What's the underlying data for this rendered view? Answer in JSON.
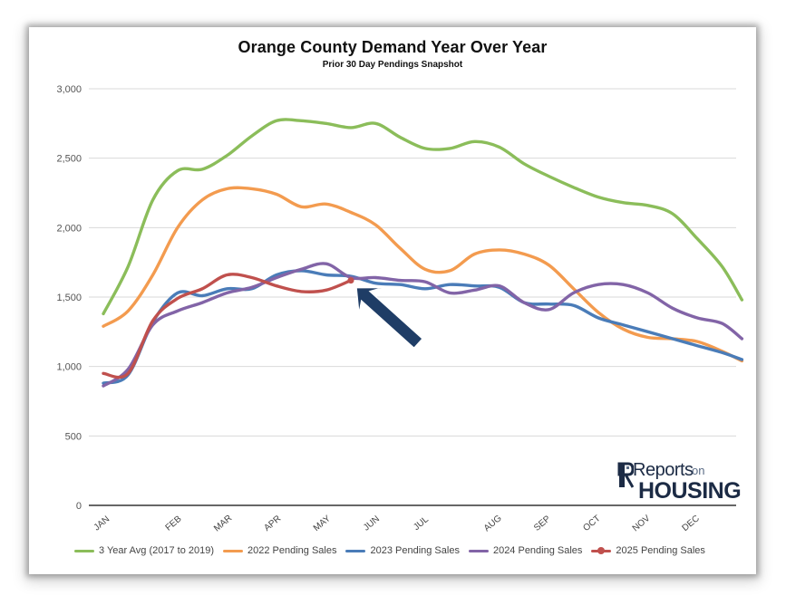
{
  "chart_data": {
    "type": "line",
    "title": "Orange County Demand Year Over Year",
    "subtitle": "Prior 30 Day Pendings Snapshot",
    "xlabel": "",
    "ylabel": "",
    "ylim": [
      0,
      3000
    ],
    "yticks": [
      0,
      500,
      1000,
      1500,
      2000,
      2500,
      3000
    ],
    "ytick_labels": [
      "0",
      "500",
      "1,000",
      "1,500",
      "2,000",
      "2,500",
      "3,000"
    ],
    "xlim": [
      0,
      12.6
    ],
    "month_labels": [
      {
        "label": "JAN",
        "x": 0
      },
      {
        "label": "FEB",
        "x": 1.45
      },
      {
        "label": "MAR",
        "x": 2.45
      },
      {
        "label": "APR",
        "x": 3.45
      },
      {
        "label": "MAY",
        "x": 4.45
      },
      {
        "label": "JUN",
        "x": 5.45
      },
      {
        "label": "JUL",
        "x": 6.45
      },
      {
        "label": "AUG",
        "x": 7.9
      },
      {
        "label": "SEP",
        "x": 8.9
      },
      {
        "label": "OCT",
        "x": 9.9
      },
      {
        "label": "NOV",
        "x": 10.9
      },
      {
        "label": "DEC",
        "x": 11.9
      }
    ],
    "grid": true,
    "legend_position": "bottom",
    "series": [
      {
        "name": "3 Year Avg (2017 to 2019)",
        "color": "#8bbd5a",
        "marker": "line",
        "points": [
          [
            0,
            1380
          ],
          [
            0.5,
            1720
          ],
          [
            1,
            2200
          ],
          [
            1.5,
            2410
          ],
          [
            2,
            2420
          ],
          [
            2.5,
            2520
          ],
          [
            3,
            2660
          ],
          [
            3.5,
            2770
          ],
          [
            4,
            2770
          ],
          [
            4.5,
            2750
          ],
          [
            5,
            2720
          ],
          [
            5.5,
            2750
          ],
          [
            6,
            2650
          ],
          [
            6.5,
            2570
          ],
          [
            7,
            2570
          ],
          [
            7.5,
            2620
          ],
          [
            8,
            2580
          ],
          [
            8.5,
            2460
          ],
          [
            9,
            2370
          ],
          [
            9.5,
            2290
          ],
          [
            10,
            2220
          ],
          [
            10.5,
            2180
          ],
          [
            11,
            2160
          ],
          [
            11.5,
            2100
          ],
          [
            12,
            1920
          ],
          [
            12.5,
            1720
          ],
          [
            12.9,
            1480
          ]
        ]
      },
      {
        "name": "2022 Pending Sales",
        "color": "#f39b4f",
        "marker": "line",
        "points": [
          [
            0,
            1290
          ],
          [
            0.5,
            1400
          ],
          [
            1,
            1660
          ],
          [
            1.5,
            2000
          ],
          [
            2,
            2200
          ],
          [
            2.5,
            2280
          ],
          [
            3,
            2280
          ],
          [
            3.5,
            2240
          ],
          [
            4,
            2150
          ],
          [
            4.5,
            2170
          ],
          [
            5,
            2110
          ],
          [
            5.5,
            2020
          ],
          [
            6,
            1850
          ],
          [
            6.5,
            1700
          ],
          [
            7,
            1690
          ],
          [
            7.5,
            1810
          ],
          [
            8,
            1840
          ],
          [
            8.5,
            1810
          ],
          [
            9,
            1730
          ],
          [
            9.5,
            1560
          ],
          [
            10,
            1390
          ],
          [
            10.5,
            1270
          ],
          [
            11,
            1210
          ],
          [
            11.5,
            1200
          ],
          [
            12,
            1180
          ],
          [
            12.5,
            1110
          ],
          [
            12.9,
            1040
          ]
        ]
      },
      {
        "name": "2023 Pending Sales",
        "color": "#4a7cb8",
        "marker": "line",
        "points": [
          [
            0,
            880
          ],
          [
            0.5,
            940
          ],
          [
            1,
            1320
          ],
          [
            1.5,
            1530
          ],
          [
            2,
            1510
          ],
          [
            2.5,
            1560
          ],
          [
            3,
            1560
          ],
          [
            3.5,
            1660
          ],
          [
            4,
            1690
          ],
          [
            4.5,
            1660
          ],
          [
            5,
            1650
          ],
          [
            5.5,
            1600
          ],
          [
            6,
            1590
          ],
          [
            6.5,
            1560
          ],
          [
            7,
            1590
          ],
          [
            7.5,
            1580
          ],
          [
            8,
            1570
          ],
          [
            8.5,
            1460
          ],
          [
            9,
            1450
          ],
          [
            9.5,
            1440
          ],
          [
            10,
            1350
          ],
          [
            10.5,
            1300
          ],
          [
            11,
            1250
          ],
          [
            11.5,
            1200
          ],
          [
            12,
            1150
          ],
          [
            12.5,
            1100
          ],
          [
            12.9,
            1050
          ]
        ]
      },
      {
        "name": "2024 Pending Sales",
        "color": "#8264a7",
        "marker": "line",
        "points": [
          [
            0,
            860
          ],
          [
            0.5,
            980
          ],
          [
            1,
            1300
          ],
          [
            1.5,
            1400
          ],
          [
            2,
            1460
          ],
          [
            2.5,
            1530
          ],
          [
            3,
            1570
          ],
          [
            3.5,
            1640
          ],
          [
            4,
            1700
          ],
          [
            4.5,
            1740
          ],
          [
            5,
            1640
          ],
          [
            5.5,
            1640
          ],
          [
            6,
            1620
          ],
          [
            6.5,
            1610
          ],
          [
            7,
            1530
          ],
          [
            7.5,
            1550
          ],
          [
            8,
            1580
          ],
          [
            8.5,
            1460
          ],
          [
            9,
            1410
          ],
          [
            9.5,
            1530
          ],
          [
            10,
            1590
          ],
          [
            10.5,
            1590
          ],
          [
            11,
            1530
          ],
          [
            11.5,
            1420
          ],
          [
            12,
            1350
          ],
          [
            12.5,
            1310
          ],
          [
            12.9,
            1200
          ]
        ]
      },
      {
        "name": "2025 Pending Sales",
        "color": "#c0504d",
        "marker": "line-dot",
        "points": [
          [
            0,
            950
          ],
          [
            0.5,
            950
          ],
          [
            1,
            1330
          ],
          [
            1.5,
            1490
          ],
          [
            2,
            1560
          ],
          [
            2.5,
            1660
          ],
          [
            3,
            1640
          ],
          [
            3.5,
            1580
          ],
          [
            4,
            1540
          ],
          [
            4.5,
            1550
          ],
          [
            5,
            1620
          ]
        ]
      }
    ],
    "annotation": {
      "type": "arrow",
      "points_to": [
        5,
        1620
      ],
      "color": "#1f3d66"
    }
  },
  "logo": {
    "reports_label": "Reports",
    "on_label": "on",
    "housing_label": "HOUSING"
  }
}
